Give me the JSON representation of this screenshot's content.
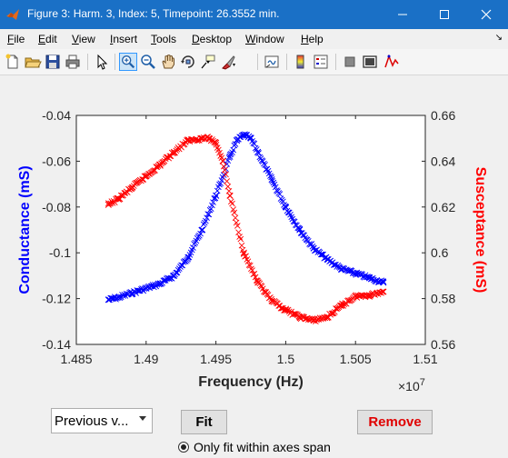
{
  "window": {
    "title": "Figure 3: Harm. 3, Index: 5, Timepoint: 26.3552 min.",
    "app_icon": "matlab-icon"
  },
  "menu": {
    "items": [
      {
        "label": "File",
        "mnemonic": "F"
      },
      {
        "label": "Edit",
        "mnemonic": "E"
      },
      {
        "label": "View",
        "mnemonic": "V"
      },
      {
        "label": "Insert",
        "mnemonic": "I"
      },
      {
        "label": "Tools",
        "mnemonic": "T"
      },
      {
        "label": "Desktop",
        "mnemonic": "D"
      },
      {
        "label": "Window",
        "mnemonic": "W"
      },
      {
        "label": "Help",
        "mnemonic": "H"
      }
    ]
  },
  "toolbar": {
    "icons": [
      "new-figure-icon",
      "open-file-icon",
      "save-icon",
      "print-icon",
      "edit-plot-icon",
      "zoom-in-icon",
      "zoom-out-icon",
      "pan-icon",
      "rotate-3d-icon",
      "data-cursor-icon",
      "brush-icon",
      "link-plot-icon",
      "colorbar-icon",
      "legend-icon",
      "hide-plot-tools-icon",
      "show-plot-tools-icon",
      "plot-browser-icon"
    ],
    "active": "zoom-in-icon"
  },
  "chart_data": {
    "type": "scatter",
    "xlabel": "Frequency (Hz)",
    "ylabel_left": "Conductance (mS)",
    "ylabel_right": "Susceptance (mS)",
    "x_exponent": "×10",
    "x_exponent_power": "7",
    "xlim": [
      1.485,
      1.51
    ],
    "ylim_left": [
      -0.14,
      -0.04
    ],
    "ylim_right": [
      0.56,
      0.66
    ],
    "xticks": [
      "1.485",
      "1.49",
      "1.495",
      "1.5",
      "1.505",
      "1.51"
    ],
    "yticks_left": [
      "-0.14",
      "-0.12",
      "-0.1",
      "-0.08",
      "-0.06",
      "-0.04"
    ],
    "yticks_right": [
      "0.56",
      "0.58",
      "0.6",
      "0.62",
      "0.64",
      "0.66"
    ],
    "marker": "x",
    "series": [
      {
        "name": "Conductance",
        "axis": "left",
        "color": "#0000ff",
        "x": [
          1.4873,
          1.488,
          1.489,
          1.49,
          1.491,
          1.492,
          1.493,
          1.494,
          1.495,
          1.496,
          1.4965,
          1.497,
          1.4975,
          1.498,
          1.499,
          1.5,
          1.501,
          1.502,
          1.503,
          1.504,
          1.505,
          1.506,
          1.507
        ],
        "y": [
          -0.1205,
          -0.1195,
          -0.1175,
          -0.1155,
          -0.1135,
          -0.11,
          -0.102,
          -0.09,
          -0.075,
          -0.058,
          -0.051,
          -0.0485,
          -0.05,
          -0.056,
          -0.068,
          -0.08,
          -0.09,
          -0.098,
          -0.103,
          -0.107,
          -0.109,
          -0.111,
          -0.113
        ]
      },
      {
        "name": "Susceptance",
        "axis": "right",
        "color": "#ff0000",
        "x": [
          1.4873,
          1.488,
          1.489,
          1.49,
          1.491,
          1.492,
          1.493,
          1.494,
          1.4945,
          1.495,
          1.4955,
          1.496,
          1.497,
          1.498,
          1.499,
          1.5,
          1.501,
          1.502,
          1.503,
          1.504,
          1.505,
          1.506,
          1.507
        ],
        "y": [
          0.621,
          0.6235,
          0.6285,
          0.6335,
          0.6385,
          0.644,
          0.649,
          0.65,
          0.65,
          0.648,
          0.64,
          0.625,
          0.6,
          0.587,
          0.579,
          0.575,
          0.572,
          0.5705,
          0.572,
          0.577,
          0.581,
          0.5815,
          0.583
        ]
      }
    ]
  },
  "controls": {
    "popup_value": "Previous v...",
    "fit_label": "Fit",
    "remove_label": "Remove",
    "radio_label": "Only fit within axes span",
    "radio_checked": true
  }
}
